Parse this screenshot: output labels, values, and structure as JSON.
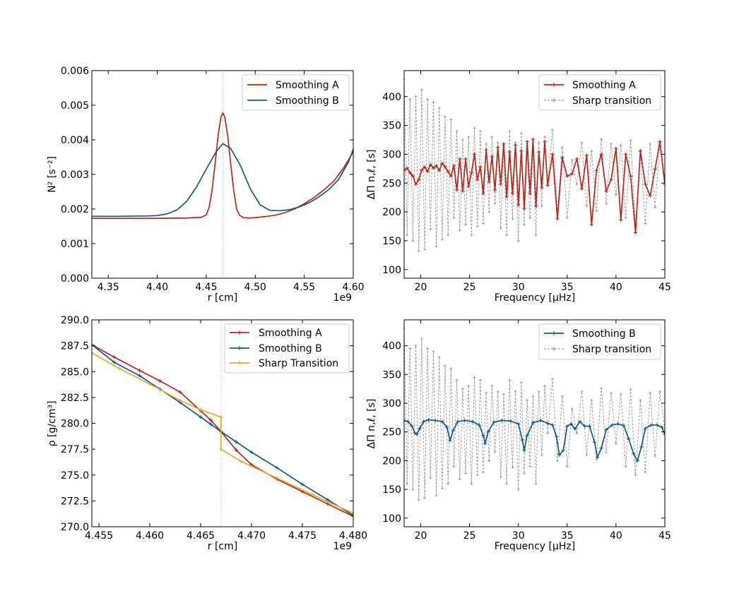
{
  "chart_data": [
    {
      "id": "panel-n2",
      "type": "line",
      "xlabel": "r [cm]",
      "ylabel": "N² [s⁻²]",
      "offset_text": "1e9",
      "xlim": [
        4.3333,
        4.6
      ],
      "ylim": [
        0.0,
        0.006
      ],
      "xticks": [
        4.35,
        4.4,
        4.45,
        4.5,
        4.55,
        4.6
      ],
      "xtick_labels": [
        "4.35",
        "4.40",
        "4.45",
        "4.50",
        "4.55",
        "4.60"
      ],
      "yticks": [
        0.0,
        0.001,
        0.002,
        0.003,
        0.004,
        0.005,
        0.006
      ],
      "ytick_labels": [
        "0.000",
        "0.001",
        "0.002",
        "0.003",
        "0.004",
        "0.005",
        "0.006"
      ],
      "vline": 4.467,
      "legend_position": "top-right",
      "series": [
        {
          "name": "Smoothing A",
          "color": "#b5271a",
          "x": [
            4.3333,
            4.36,
            4.4,
            4.43,
            4.445,
            4.45,
            4.453,
            4.456,
            4.459,
            4.462,
            4.465,
            4.467,
            4.469,
            4.472,
            4.475,
            4.478,
            4.481,
            4.484,
            4.488,
            4.495,
            4.5,
            4.51,
            4.52,
            4.53,
            4.54,
            4.55,
            4.56,
            4.57,
            4.58,
            4.59,
            4.6
          ],
          "y": [
            0.00173,
            0.00173,
            0.00173,
            0.00174,
            0.00176,
            0.00183,
            0.00205,
            0.00255,
            0.0033,
            0.0041,
            0.00465,
            0.00478,
            0.00465,
            0.0041,
            0.0033,
            0.00255,
            0.002,
            0.00182,
            0.00175,
            0.00174,
            0.00175,
            0.00178,
            0.00182,
            0.00189,
            0.002,
            0.00215,
            0.00233,
            0.00255,
            0.0028,
            0.00318,
            0.00365
          ]
        },
        {
          "name": "Smoothing B",
          "color": "#115985",
          "x": [
            4.3333,
            4.36,
            4.39,
            4.4,
            4.41,
            4.42,
            4.43,
            4.44,
            4.45,
            4.46,
            4.467,
            4.475,
            4.485,
            4.495,
            4.505,
            4.515,
            4.525,
            4.535,
            4.545,
            4.555,
            4.565,
            4.575,
            4.585,
            4.595,
            4.6
          ],
          "y": [
            0.00179,
            0.00179,
            0.0018,
            0.00181,
            0.00186,
            0.00197,
            0.00222,
            0.00263,
            0.00315,
            0.00365,
            0.00389,
            0.00375,
            0.00325,
            0.00258,
            0.00212,
            0.00196,
            0.00195,
            0.00198,
            0.00206,
            0.00218,
            0.00235,
            0.00256,
            0.00285,
            0.00335,
            0.00373
          ]
        }
      ]
    },
    {
      "id": "panel-rho",
      "type": "line",
      "xlabel": "r [cm]",
      "ylabel": "ρ [g/cm³]",
      "offset_text": "1e9",
      "xlim": [
        4.4543,
        4.48
      ],
      "ylim": [
        270.0,
        290.0
      ],
      "xticks": [
        4.455,
        4.46,
        4.465,
        4.47,
        4.475,
        4.48
      ],
      "xtick_labels": [
        "4.455",
        "4.460",
        "4.465",
        "4.470",
        "4.475",
        "4.480"
      ],
      "yticks": [
        270.0,
        272.5,
        275.0,
        277.5,
        280.0,
        282.5,
        285.0,
        287.5,
        290.0
      ],
      "ytick_labels": [
        "270.0",
        "272.5",
        "275.0",
        "277.5",
        "280.0",
        "282.5",
        "285.0",
        "287.5",
        "290.0"
      ],
      "vline": 4.467,
      "legend_position": "top-right",
      "series": [
        {
          "name": "Smoothing A",
          "color": "#b5271a",
          "x": [
            4.4543,
            4.4565,
            4.459,
            4.461,
            4.463,
            4.465,
            4.466,
            4.467,
            4.4685,
            4.47,
            4.4725,
            4.475,
            4.4775,
            4.48
          ],
          "y": [
            287.6,
            286.4,
            285.1,
            284.1,
            283.0,
            281.2,
            280.3,
            279.2,
            277.4,
            276.0,
            274.6,
            273.4,
            272.2,
            271.0
          ]
        },
        {
          "name": "Smoothing B",
          "color": "#115985",
          "x": [
            4.4543,
            4.4565,
            4.459,
            4.461,
            4.463,
            4.465,
            4.466,
            4.467,
            4.4685,
            4.47,
            4.4725,
            4.475,
            4.4775,
            4.48
          ],
          "y": [
            287.6,
            285.9,
            284.6,
            283.3,
            282.0,
            280.6,
            279.9,
            279.2,
            278.2,
            277.2,
            275.7,
            274.1,
            272.6,
            271.1
          ]
        },
        {
          "name": "Sharp Transition",
          "color": "#e0aa21",
          "x": [
            4.4543,
            4.457,
            4.46,
            4.463,
            4.465,
            4.467,
            4.467,
            4.469,
            4.4725,
            4.476,
            4.48
          ],
          "y": [
            286.8,
            285.3,
            283.8,
            282.2,
            281.3,
            280.6,
            277.5,
            276.3,
            274.7,
            273.1,
            271.3
          ]
        }
      ]
    },
    {
      "id": "panel-period-a",
      "type": "line",
      "xlabel": "Frequency [μHz]",
      "ylabel": "ΔΠ n,ℓ, [s]",
      "xlim": [
        18.3,
        45.0
      ],
      "ylim": [
        85.0,
        445.0
      ],
      "xticks": [
        20,
        25,
        30,
        35,
        40,
        45
      ],
      "xtick_labels": [
        "20",
        "25",
        "30",
        "35",
        "40",
        "45"
      ],
      "yticks": [
        100,
        150,
        200,
        250,
        300,
        350,
        400
      ],
      "ytick_labels": [
        "100",
        "150",
        "200",
        "250",
        "300",
        "350",
        "400"
      ],
      "legend_position": "top-right",
      "series": [
        {
          "name": "Smoothing A",
          "color": "#b5271a",
          "style": "solid-marker",
          "x": [
            18.3,
            18.6,
            18.9,
            19.2,
            19.5,
            19.8,
            20.1,
            20.4,
            20.7,
            21.0,
            21.3,
            21.6,
            21.9,
            22.2,
            22.5,
            22.8,
            23.1,
            23.4,
            23.7,
            24.0,
            24.3,
            24.6,
            24.9,
            25.2,
            25.5,
            25.8,
            26.1,
            26.4,
            26.7,
            27.0,
            27.3,
            27.6,
            27.9,
            28.2,
            28.5,
            28.8,
            29.1,
            29.4,
            29.7,
            30.0,
            30.3,
            30.6,
            30.9,
            31.2,
            31.5,
            31.8,
            32.1,
            32.4,
            32.7,
            33.0,
            33.5,
            34.0,
            34.5,
            35.0,
            35.5,
            36.0,
            36.5,
            37.0,
            37.5,
            38.0,
            38.5,
            39.0,
            39.5,
            40.0,
            40.5,
            41.0,
            41.5,
            42.0,
            42.5,
            43.0,
            43.5,
            44.0,
            44.5,
            45.0
          ],
          "y": [
            272,
            276,
            268,
            262,
            248,
            256,
            272,
            278,
            270,
            282,
            276,
            280,
            272,
            284,
            278,
            270,
            262,
            280,
            238,
            292,
            236,
            292,
            244,
            268,
            300,
            256,
            278,
            232,
            308,
            252,
            296,
            238,
            312,
            248,
            318,
            226,
            304,
            232,
            316,
            212,
            306,
            206,
            322,
            232,
            326,
            210,
            304,
            242,
            322,
            246,
            300,
            188,
            294,
            262,
            266,
            292,
            240,
            298,
            178,
            272,
            300,
            236,
            256,
            310,
            186,
            300,
            262,
            164,
            306,
            248,
            228,
            274,
            322,
            248
          ]
        },
        {
          "name": "Sharp transition",
          "color": "#8a8a8a",
          "style": "dashed-marker",
          "x": [
            18.3,
            18.6,
            18.9,
            19.2,
            19.5,
            19.8,
            20.1,
            20.4,
            20.7,
            21.0,
            21.3,
            21.6,
            21.9,
            22.2,
            22.5,
            22.8,
            23.1,
            23.4,
            23.7,
            24.0,
            24.3,
            24.6,
            24.9,
            25.2,
            25.5,
            25.8,
            26.1,
            26.4,
            26.7,
            27.0,
            27.3,
            27.6,
            27.9,
            28.2,
            28.5,
            28.8,
            29.1,
            29.4,
            29.7,
            30.0,
            30.3,
            30.6,
            30.9,
            31.2,
            31.5,
            31.8,
            32.1,
            32.4,
            32.7,
            33.0,
            33.5,
            34.0,
            34.5,
            35.0,
            35.5,
            36.0,
            36.5,
            37.0,
            37.5,
            38.0,
            38.5,
            39.0,
            39.5,
            40.0,
            40.5,
            41.0,
            41.5,
            42.0,
            42.5,
            43.0,
            43.5,
            44.0,
            44.5,
            45.0
          ],
          "y": [
            430,
            160,
            395,
            150,
            400,
            132,
            412,
            135,
            395,
            170,
            390,
            140,
            380,
            152,
            365,
            160,
            360,
            190,
            340,
            168,
            325,
            178,
            330,
            160,
            345,
            175,
            340,
            180,
            318,
            200,
            330,
            215,
            320,
            172,
            315,
            160,
            340,
            188,
            320,
            150,
            336,
            178,
            305,
            190,
            312,
            160,
            320,
            210,
            330,
            248,
            342,
            200,
            312,
            190,
            290,
            248,
            320,
            210,
            305,
            202,
            326,
            214,
            318,
            230,
            316,
            190,
            324,
            175,
            305,
            180,
            318,
            208,
            320,
            255
          ]
        }
      ]
    },
    {
      "id": "panel-period-b",
      "type": "line",
      "xlabel": "Frequency [μHz]",
      "ylabel": "ΔΠ n,ℓ, [s]",
      "xlim": [
        18.3,
        45.0
      ],
      "ylim": [
        85.0,
        445.0
      ],
      "xticks": [
        20,
        25,
        30,
        35,
        40,
        45
      ],
      "xtick_labels": [
        "20",
        "25",
        "30",
        "35",
        "40",
        "45"
      ],
      "yticks": [
        100,
        150,
        200,
        250,
        300,
        350,
        400
      ],
      "ytick_labels": [
        "100",
        "150",
        "200",
        "250",
        "300",
        "350",
        "400"
      ],
      "legend_position": "top-right",
      "series": [
        {
          "name": "Smoothing B",
          "color": "#115985",
          "style": "solid-marker",
          "x": [
            18.3,
            18.7,
            19.1,
            19.4,
            19.6,
            19.9,
            20.3,
            20.8,
            21.5,
            22.2,
            22.7,
            23.0,
            23.3,
            23.8,
            24.5,
            25.3,
            26.0,
            26.4,
            26.6,
            26.9,
            27.5,
            28.3,
            29.2,
            30.0,
            30.4,
            30.6,
            30.9,
            31.5,
            32.3,
            33.0,
            33.5,
            33.9,
            34.2,
            34.6,
            35.0,
            35.4,
            35.8,
            36.3,
            36.8,
            37.3,
            37.8,
            38.1,
            38.5,
            39.0,
            39.6,
            40.2,
            40.8,
            41.3,
            41.8,
            42.2,
            42.6,
            43.0,
            43.6,
            44.2,
            44.7,
            45.0
          ],
          "y": [
            270,
            268,
            260,
            248,
            246,
            256,
            268,
            271,
            270,
            268,
            258,
            235,
            252,
            268,
            270,
            268,
            262,
            244,
            230,
            250,
            267,
            270,
            269,
            264,
            236,
            218,
            244,
            266,
            270,
            265,
            262,
            242,
            210,
            218,
            260,
            264,
            255,
            268,
            260,
            260,
            232,
            206,
            222,
            254,
            262,
            264,
            261,
            238,
            212,
            200,
            224,
            256,
            262,
            262,
            258,
            246
          ]
        },
        {
          "name": "Sharp transition",
          "color": "#8a8a8a",
          "style": "dashed-marker",
          "x": [
            18.3,
            18.6,
            18.9,
            19.2,
            19.5,
            19.8,
            20.1,
            20.4,
            20.7,
            21.0,
            21.3,
            21.6,
            21.9,
            22.2,
            22.5,
            22.8,
            23.1,
            23.4,
            23.7,
            24.0,
            24.3,
            24.6,
            24.9,
            25.2,
            25.5,
            25.8,
            26.1,
            26.4,
            26.7,
            27.0,
            27.3,
            27.6,
            27.9,
            28.2,
            28.5,
            28.8,
            29.1,
            29.4,
            29.7,
            30.0,
            30.3,
            30.6,
            30.9,
            31.2,
            31.5,
            31.8,
            32.1,
            32.4,
            32.7,
            33.0,
            33.5,
            34.0,
            34.5,
            35.0,
            35.5,
            36.0,
            36.5,
            37.0,
            37.5,
            38.0,
            38.5,
            39.0,
            39.5,
            40.0,
            40.5,
            41.0,
            41.5,
            42.0,
            42.5,
            43.0,
            43.5,
            44.0,
            44.5,
            45.0
          ],
          "y": [
            430,
            160,
            395,
            150,
            400,
            132,
            412,
            135,
            395,
            170,
            390,
            140,
            380,
            152,
            365,
            160,
            360,
            190,
            340,
            168,
            325,
            178,
            330,
            160,
            345,
            175,
            340,
            180,
            318,
            200,
            330,
            215,
            320,
            172,
            315,
            160,
            340,
            188,
            320,
            150,
            336,
            178,
            305,
            190,
            312,
            160,
            320,
            210,
            330,
            248,
            342,
            200,
            312,
            190,
            290,
            248,
            320,
            210,
            305,
            202,
            326,
            214,
            318,
            230,
            316,
            190,
            324,
            175,
            305,
            180,
            318,
            208,
            320,
            255
          ]
        }
      ]
    }
  ]
}
